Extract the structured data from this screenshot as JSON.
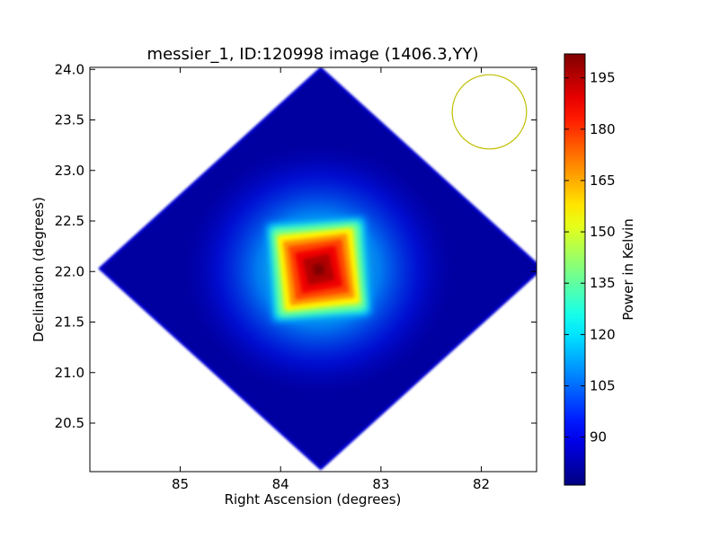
{
  "chart_data": {
    "type": "heatmap",
    "title": "messier_1, ID:120998 image (1406.3,YY)",
    "xlabel": "Right Ascension (degrees)",
    "ylabel": "Declination (degrees)",
    "x_axis_reversed": true,
    "xlim": [
      85.9,
      81.45
    ],
    "ylim": [
      20.02,
      24.02
    ],
    "xticks": [
      85,
      84,
      83,
      82
    ],
    "yticks": [
      20.5,
      21.0,
      21.5,
      22.0,
      22.5,
      23.0,
      23.5,
      24.0
    ],
    "xtick_labels": [
      "85",
      "84",
      "83",
      "82"
    ],
    "ytick_labels": [
      "20.5",
      "21.0",
      "21.5",
      "22.0",
      "22.5",
      "23.0",
      "23.5",
      "24.0"
    ],
    "colormap": "jet",
    "colorbar": {
      "label": "Power in Kelvin",
      "min": 76,
      "max": 202,
      "ticks": [
        90,
        105,
        120,
        135,
        150,
        165,
        180,
        195
      ],
      "tick_labels": [
        "90",
        "105",
        "120",
        "135",
        "150",
        "165",
        "180",
        "195"
      ]
    },
    "field": {
      "shape": "diamond",
      "center": [
        83.6,
        22.03
      ],
      "half_width_ra": 2.2,
      "half_height_dec": 1.98,
      "background_value": 80
    },
    "source": {
      "center": [
        83.62,
        22.02
      ],
      "peak_value": 202,
      "shape": "rotated-square"
    },
    "beam": {
      "center": [
        81.92,
        23.58
      ],
      "radius_deg": 0.37,
      "color": "#bfbf00"
    },
    "grid": false
  }
}
